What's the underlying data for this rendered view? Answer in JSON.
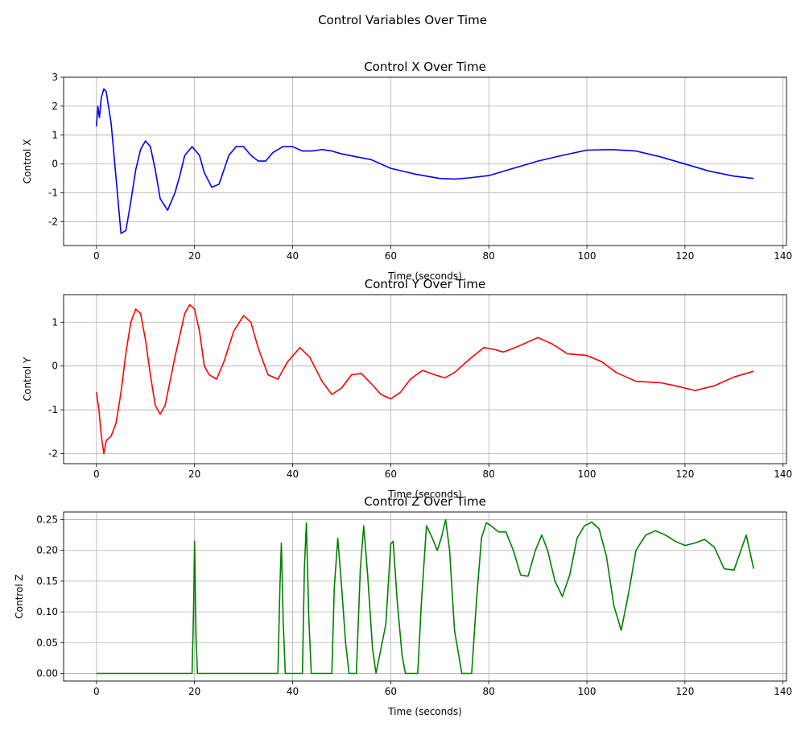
{
  "figure": {
    "title": "Control Variables Over Time"
  },
  "chart_data": [
    {
      "type": "line",
      "title": "Control X Over Time",
      "xlabel": "Time (seconds)",
      "ylabel": "Control X",
      "xlim": [
        -6.7,
        140.7
      ],
      "ylim": [
        -2.82,
        3.0
      ],
      "xticks": [
        0,
        20,
        40,
        60,
        80,
        100,
        120,
        140
      ],
      "yticks": [
        -2,
        -1,
        0,
        1,
        2,
        3
      ],
      "grid": true,
      "color": "#0000ff",
      "series": [
        {
          "x": [
            0,
            0.3,
            0.6,
            1,
            1.5,
            2,
            3,
            4,
            5,
            6,
            7,
            8,
            9,
            10,
            11,
            12,
            13,
            14.5,
            16,
            17,
            18,
            19.5,
            21,
            22,
            23.5,
            25,
            27,
            28.5,
            30,
            31.5,
            33,
            34.5,
            36,
            38,
            40,
            42,
            44,
            46,
            48,
            50,
            53,
            56,
            60,
            65,
            70,
            73,
            76,
            80,
            85,
            90,
            95,
            100,
            105,
            110,
            115,
            120,
            125,
            130,
            134
          ],
          "y": [
            1.3,
            2.0,
            1.6,
            2.3,
            2.6,
            2.5,
            1.4,
            -0.5,
            -2.4,
            -2.3,
            -1.3,
            -0.2,
            0.5,
            0.8,
            0.6,
            -0.2,
            -1.2,
            -1.6,
            -1.0,
            -0.4,
            0.3,
            0.6,
            0.3,
            -0.3,
            -0.8,
            -0.7,
            0.3,
            0.6,
            0.6,
            0.3,
            0.1,
            0.1,
            0.4,
            0.6,
            0.6,
            0.45,
            0.45,
            0.5,
            0.45,
            0.35,
            0.25,
            0.15,
            -0.15,
            -0.35,
            -0.5,
            -0.52,
            -0.48,
            -0.4,
            -0.15,
            0.1,
            0.3,
            0.48,
            0.5,
            0.45,
            0.25,
            0.0,
            -0.25,
            -0.42,
            -0.5
          ]
        }
      ]
    },
    {
      "type": "line",
      "title": "Control Y Over Time",
      "xlabel": "Time (seconds)",
      "ylabel": "Control Y",
      "xlim": [
        -6.7,
        140.7
      ],
      "ylim": [
        -2.23,
        1.63
      ],
      "xticks": [
        0,
        20,
        40,
        60,
        80,
        100,
        120,
        140
      ],
      "yticks": [
        -2,
        -1,
        0,
        1
      ],
      "grid": true,
      "color": "#ff0000",
      "series": [
        {
          "x": [
            0,
            0.5,
            1,
            1.5,
            2,
            3,
            4,
            5,
            6,
            7,
            8,
            9,
            10,
            11,
            12,
            13,
            14,
            16,
            18,
            19,
            20,
            21,
            22,
            23,
            24.5,
            26,
            28,
            30,
            31.5,
            33,
            35,
            37,
            39,
            41.5,
            43.5,
            46,
            48,
            50,
            52,
            54,
            56,
            58,
            60,
            62,
            64,
            66.5,
            69,
            71,
            73,
            76,
            79,
            81,
            83,
            86,
            90,
            93,
            96,
            100,
            103,
            106,
            110,
            115,
            118,
            122,
            126,
            130,
            134
          ],
          "y": [
            -0.6,
            -1.0,
            -1.6,
            -2.0,
            -1.7,
            -1.6,
            -1.3,
            -0.6,
            0.3,
            1.0,
            1.3,
            1.2,
            0.6,
            -0.2,
            -0.9,
            -1.1,
            -0.9,
            0.2,
            1.2,
            1.4,
            1.3,
            0.8,
            0.0,
            -0.2,
            -0.3,
            0.1,
            0.8,
            1.15,
            1.0,
            0.4,
            -0.2,
            -0.3,
            0.1,
            0.42,
            0.2,
            -0.35,
            -0.65,
            -0.5,
            -0.2,
            -0.17,
            -0.4,
            -0.65,
            -0.75,
            -0.6,
            -0.3,
            -0.1,
            -0.2,
            -0.27,
            -0.15,
            0.15,
            0.42,
            0.38,
            0.32,
            0.45,
            0.65,
            0.5,
            0.28,
            0.24,
            0.1,
            -0.15,
            -0.35,
            -0.38,
            -0.45,
            -0.56,
            -0.45,
            -0.25,
            -0.12
          ]
        }
      ]
    },
    {
      "type": "line",
      "title": "Control Z Over Time",
      "xlabel": "Time (seconds)",
      "ylabel": "Control Z",
      "xlim": [
        -6.7,
        140.7
      ],
      "ylim": [
        -0.0125,
        0.2625
      ],
      "xticks": [
        0,
        20,
        40,
        60,
        80,
        100,
        120,
        140
      ],
      "yticks": [
        0.0,
        0.05,
        0.1,
        0.15,
        0.2,
        0.25
      ],
      "yticklabels": [
        "0.00",
        "0.05",
        "0.10",
        "0.15",
        "0.20",
        "0.25"
      ],
      "grid": true,
      "color": "#008000",
      "series": [
        {
          "x": [
            0,
            19.5,
            19.8,
            20,
            20.3,
            20.6,
            37,
            37.4,
            37.7,
            38.1,
            38.5,
            42,
            42.4,
            42.8,
            43.3,
            43.8,
            48,
            48.5,
            49.2,
            50,
            50.8,
            51.5,
            53,
            53.8,
            54.5,
            55.3,
            56.3,
            57,
            59,
            60,
            60.5,
            61.3,
            62.3,
            63,
            65.5,
            66.3,
            67.3,
            68.5,
            69.5,
            70.3,
            71.2,
            72,
            73,
            74.5,
            76.5,
            77.5,
            78.5,
            79.5,
            80.5,
            82,
            83.5,
            85,
            86.5,
            88,
            89.5,
            90.8,
            92,
            93.5,
            95,
            96.5,
            98,
            99.5,
            101,
            102.5,
            104,
            105.5,
            107,
            108.5,
            110,
            112,
            114,
            116,
            118,
            120,
            122,
            124,
            126,
            128,
            130,
            132.5,
            134
          ],
          "y": [
            0.0,
            0.0,
            0.1,
            0.215,
            0.06,
            0.0,
            0.0,
            0.14,
            0.212,
            0.08,
            0.0,
            0.0,
            0.17,
            0.245,
            0.09,
            0.0,
            0.0,
            0.14,
            0.22,
            0.14,
            0.05,
            0.0,
            0.0,
            0.17,
            0.24,
            0.16,
            0.04,
            0.0,
            0.08,
            0.21,
            0.215,
            0.12,
            0.03,
            0.0,
            0.0,
            0.12,
            0.24,
            0.22,
            0.2,
            0.22,
            0.25,
            0.2,
            0.07,
            0.0,
            0.0,
            0.12,
            0.22,
            0.245,
            0.24,
            0.23,
            0.23,
            0.2,
            0.16,
            0.158,
            0.2,
            0.225,
            0.2,
            0.15,
            0.125,
            0.16,
            0.22,
            0.24,
            0.246,
            0.235,
            0.19,
            0.11,
            0.07,
            0.13,
            0.2,
            0.225,
            0.232,
            0.225,
            0.215,
            0.208,
            0.212,
            0.218,
            0.205,
            0.17,
            0.168,
            0.225,
            0.17
          ]
        }
      ]
    }
  ]
}
